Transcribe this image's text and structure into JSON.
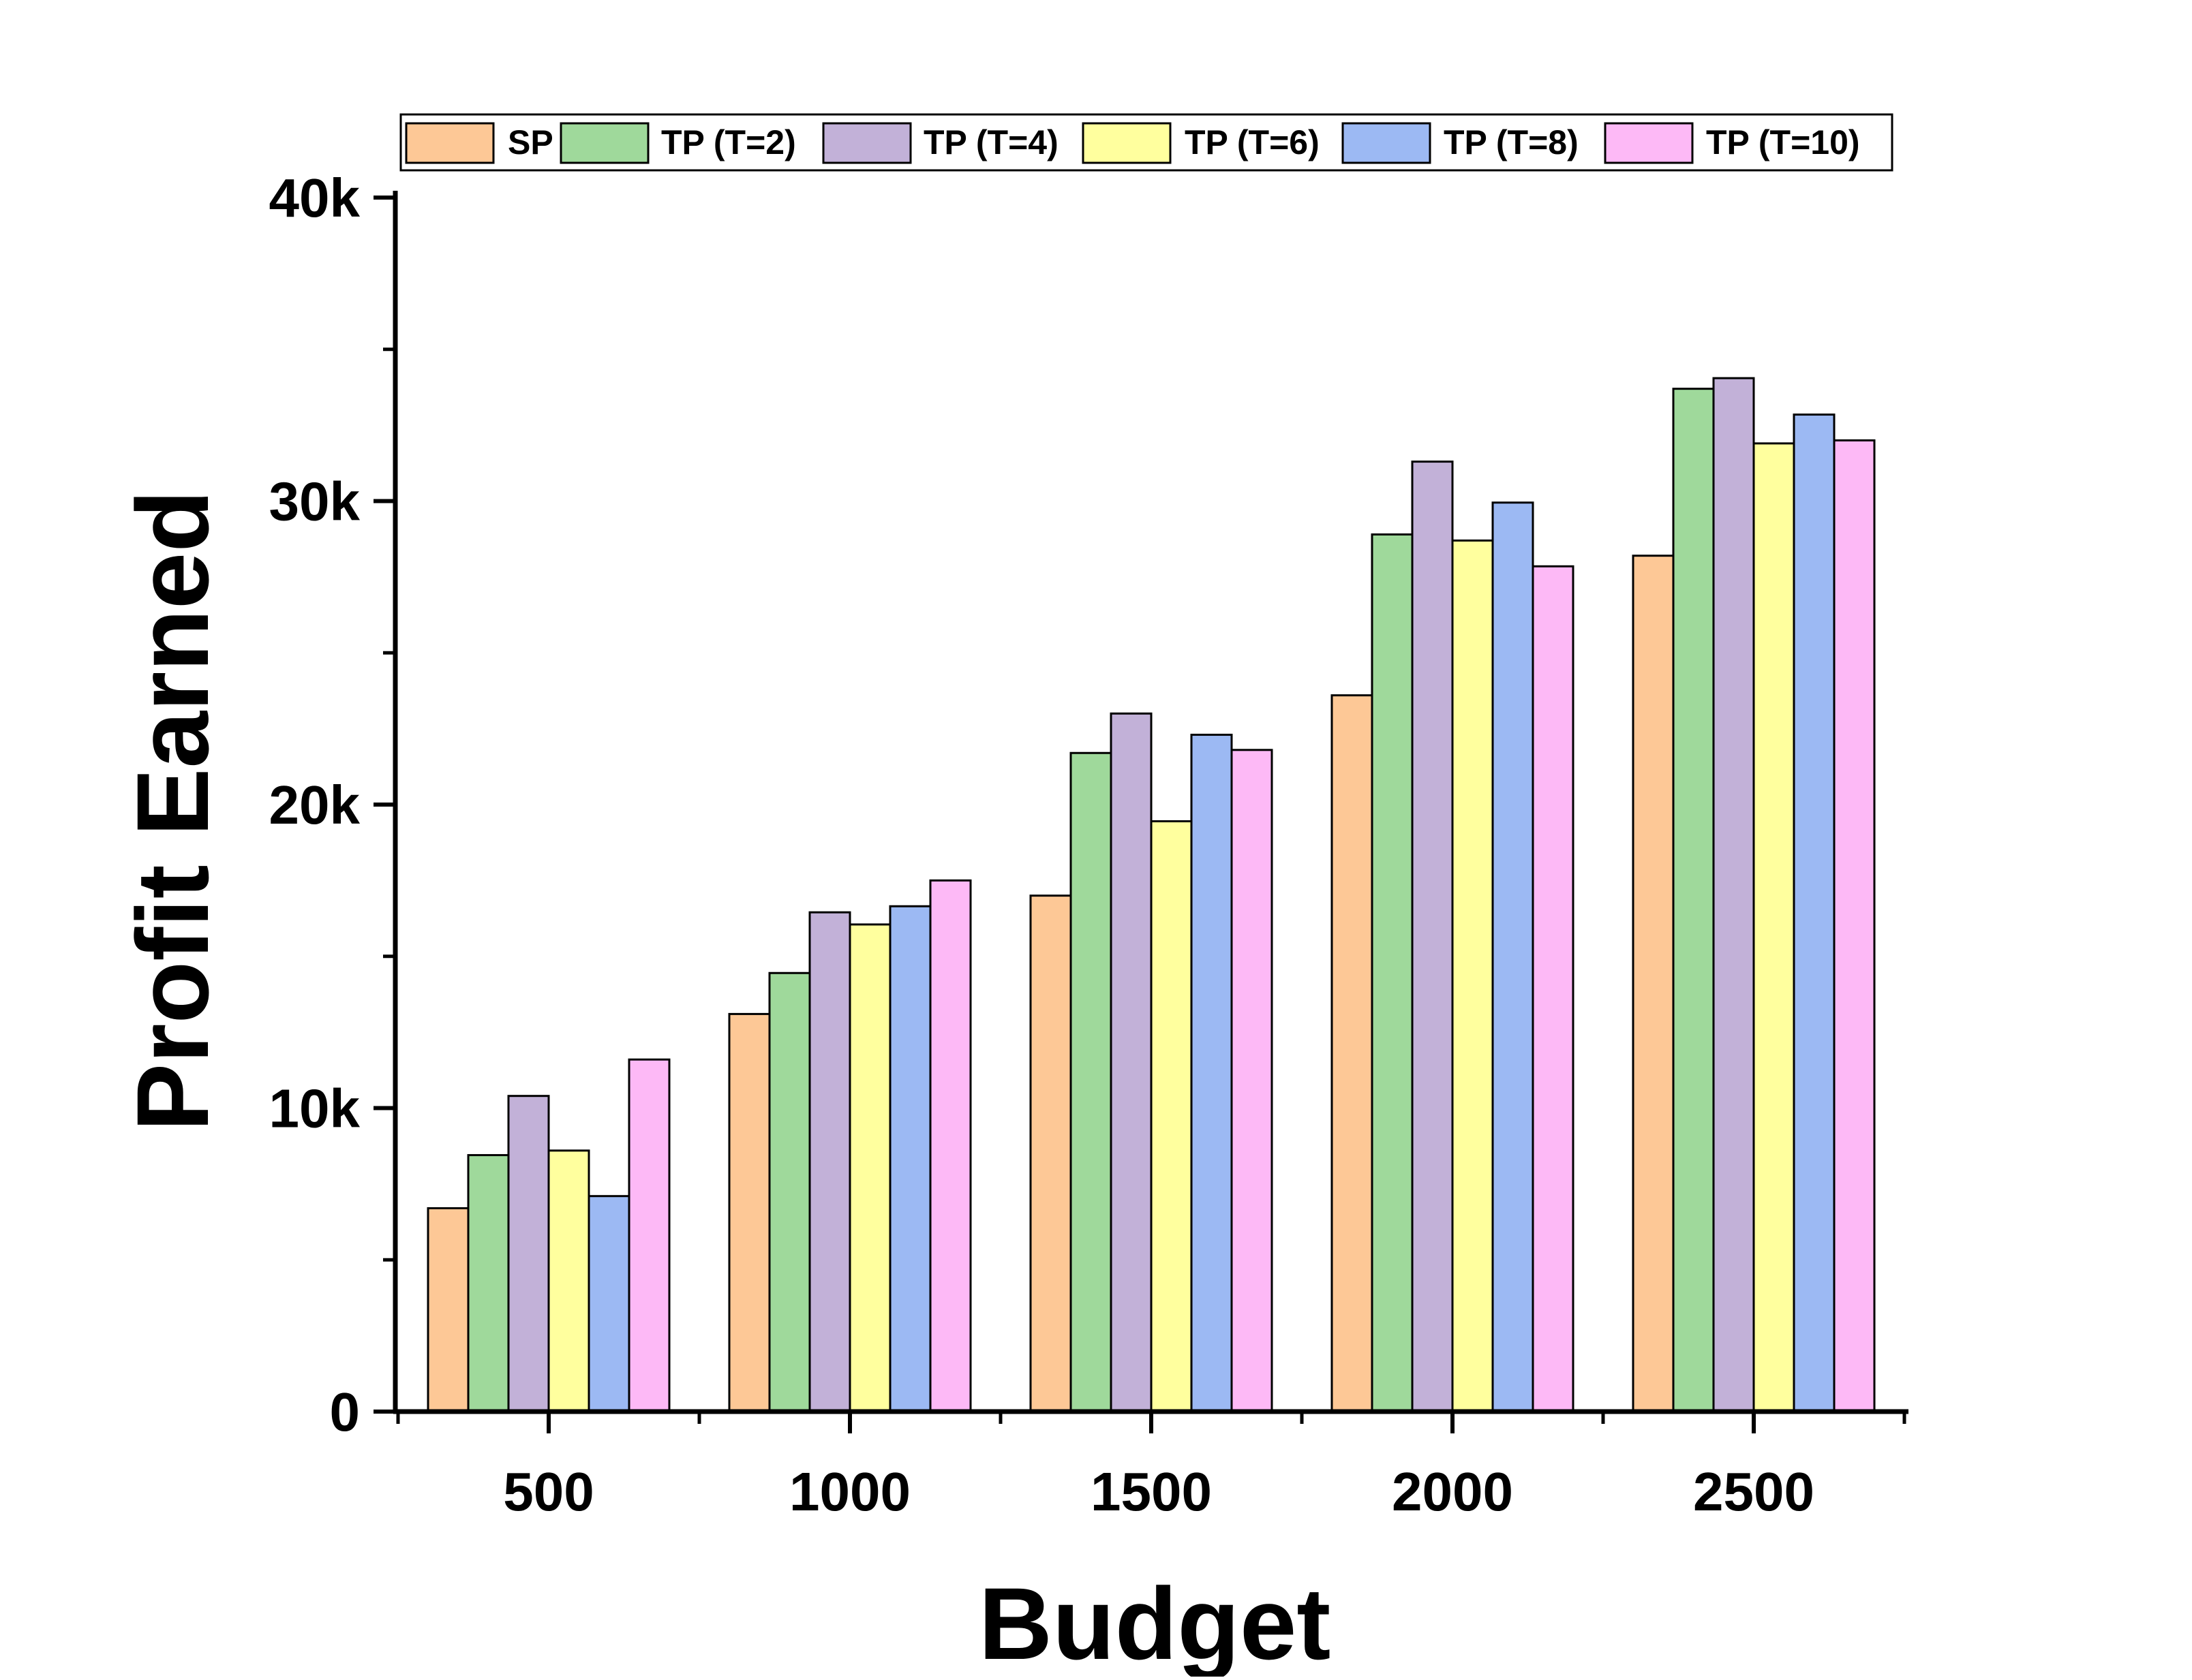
{
  "chart_data": {
    "type": "bar",
    "title": "",
    "xlabel": "Budget",
    "ylabel": "Profit Earned",
    "categories": [
      "500",
      "1000",
      "1500",
      "2000",
      "2500"
    ],
    "ylim": [
      0,
      40000
    ],
    "yticks": [
      0,
      10000,
      20000,
      30000,
      40000
    ],
    "ytick_labels": [
      "0",
      "10k",
      "20k",
      "30k",
      "40k"
    ],
    "grid": false,
    "legend_position": "top",
    "series": [
      {
        "name": "SP",
        "color": "#FDC896",
        "values": [
          6700,
          13100,
          17000,
          23600,
          28200
        ]
      },
      {
        "name": "TP (T=2)",
        "color": "#9FD99B",
        "values": [
          8450,
          14450,
          21700,
          28900,
          33700
        ]
      },
      {
        "name": "TP (T=4)",
        "color": "#C2B1D8",
        "values": [
          10400,
          16450,
          23000,
          31300,
          34050
        ]
      },
      {
        "name": "TP (T=6)",
        "color": "#FFFF9E",
        "values": [
          8600,
          16050,
          19450,
          28700,
          31900
        ]
      },
      {
        "name": "TP (T=8)",
        "color": "#9CB9F3",
        "values": [
          7100,
          16650,
          22300,
          29950,
          32850
        ]
      },
      {
        "name": "TP (T=10)",
        "color": "#FDB9F6",
        "values": [
          11600,
          17500,
          21800,
          27850,
          32000
        ]
      }
    ]
  }
}
